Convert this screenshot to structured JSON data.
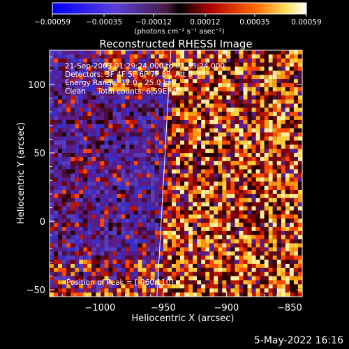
{
  "chart_data": {
    "type": "heatmap",
    "title": "Reconstructed RHESSI Image",
    "xlabel": "Heliocentric X (arcsec)",
    "ylabel": "Heliocentric Y (arcsec)",
    "x_ticks": [
      -1000,
      -950,
      -900,
      -850
    ],
    "y_ticks": [
      -50,
      0,
      50,
      100
    ],
    "x_tick_labels": [
      "−1000",
      "−950",
      "−900",
      "−850"
    ],
    "y_tick_labels": [
      "−50",
      "0",
      "50",
      "100"
    ],
    "xlim": [
      -1040,
      -840
    ],
    "ylim": [
      -55,
      125
    ],
    "colorbar": {
      "ticks": [
        "−0.00059",
        "−0.00035",
        "−0.00012",
        "0.00012",
        "0.00035",
        "0.00059"
      ],
      "range": [
        -0.00059,
        0.00059
      ],
      "unit_label": "(photons cm⁻² s⁻¹ asec⁻²)"
    },
    "annotations": [
      "21-Sep-2003 01:29:24.000 to 01:35:24.000",
      "Detectors: 3F 4F 5F 6F 7F 8F, Att 0",
      "Energy Range: 12.0 - 25.0 keV",
      "Clean     Total counts: 6.59E+03"
    ],
    "peak_label": "Position of Peak = [-960,110]",
    "limb_line": [
      [
        -944,
        125
      ],
      [
        -955,
        -55
      ]
    ]
  },
  "footer": {
    "date": "5-May-2022 16:16"
  }
}
